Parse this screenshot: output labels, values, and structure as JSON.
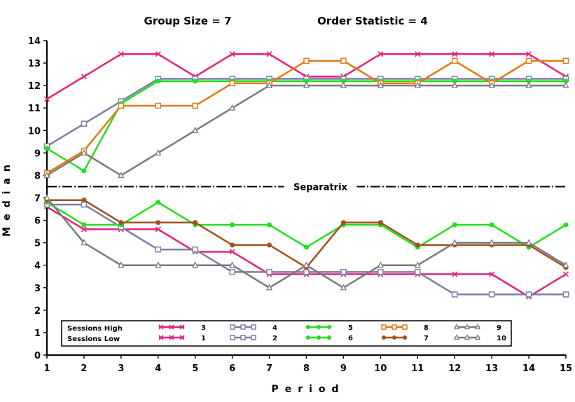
{
  "chart_data": {
    "type": "line",
    "title_left": "Group Size = 7",
    "title_right": "Order Statistic = 4",
    "xlabel": "Period",
    "ylabel": "Median",
    "x": [
      1,
      2,
      3,
      4,
      5,
      6,
      7,
      8,
      9,
      10,
      11,
      12,
      13,
      14,
      15
    ],
    "xlim": [
      1,
      15
    ],
    "ylim": [
      0,
      14
    ],
    "y_ticks": [
      0,
      1,
      2,
      3,
      4,
      5,
      6,
      7,
      8,
      9,
      10,
      11,
      12,
      13,
      14
    ],
    "y_tick_labels": [
      "0",
      "1",
      "2",
      "3",
      "4",
      "5",
      "6",
      "7",
      "8",
      "9",
      "10",
      "11",
      "12",
      "13",
      "14"
    ],
    "separatrix": {
      "label": "Separatrix",
      "y": 7.5
    },
    "legend": {
      "row_labels": [
        "Sessions High",
        "Sessions Low"
      ]
    },
    "series": [
      {
        "name": "3",
        "group": "Sessions High",
        "color": "#e8207a",
        "marker": "x",
        "values": [
          11.4,
          12.4,
          13.4,
          13.4,
          12.4,
          13.4,
          13.4,
          12.4,
          12.4,
          13.4,
          13.4,
          13.4,
          13.4,
          13.4,
          12.4
        ]
      },
      {
        "name": "4",
        "group": "Sessions High",
        "color": "#7b7fa8",
        "marker": "square",
        "values": [
          9.3,
          10.3,
          11.3,
          12.3,
          12.3,
          12.3,
          12.3,
          12.3,
          12.3,
          12.3,
          12.3,
          12.3,
          12.3,
          12.3,
          12.3
        ]
      },
      {
        "name": "5",
        "group": "Sessions High",
        "color": "#22e01c",
        "marker": "circle",
        "values": [
          9.2,
          8.2,
          11.2,
          12.2,
          12.2,
          12.2,
          12.2,
          12.2,
          12.2,
          12.2,
          12.2,
          12.2,
          12.2,
          12.2,
          12.2
        ]
      },
      {
        "name": "8",
        "group": "Sessions High",
        "color": "#e07a14",
        "marker": "square",
        "values": [
          8.1,
          9.1,
          11.1,
          11.1,
          11.1,
          12.1,
          12.1,
          13.1,
          13.1,
          12.1,
          12.1,
          13.1,
          12.1,
          13.1,
          13.1
        ]
      },
      {
        "name": "9",
        "group": "Sessions High",
        "color": "#7a7a7a",
        "marker": "triangle",
        "values": [
          8.0,
          9.0,
          8.0,
          9.0,
          10.0,
          11.0,
          12.0,
          12.0,
          12.0,
          12.0,
          12.0,
          12.0,
          12.0,
          12.0,
          12.0
        ]
      },
      {
        "name": "1",
        "group": "Sessions Low",
        "color": "#e8207a",
        "marker": "x",
        "values": [
          6.6,
          5.6,
          5.6,
          5.6,
          4.6,
          4.6,
          3.6,
          3.6,
          3.6,
          3.6,
          3.6,
          3.6,
          3.6,
          2.6,
          3.6
        ]
      },
      {
        "name": "2",
        "group": "Sessions Low",
        "color": "#7b7fa8",
        "marker": "square",
        "values": [
          6.7,
          6.7,
          5.7,
          4.7,
          4.7,
          3.7,
          3.7,
          3.7,
          3.7,
          3.7,
          3.7,
          2.7,
          2.7,
          2.7,
          2.7
        ]
      },
      {
        "name": "6",
        "group": "Sessions Low",
        "color": "#22e01c",
        "marker": "circle",
        "values": [
          6.8,
          5.8,
          5.8,
          6.8,
          5.8,
          5.8,
          5.8,
          4.8,
          5.8,
          5.8,
          4.8,
          5.8,
          5.8,
          4.8,
          5.8
        ]
      },
      {
        "name": "7",
        "group": "Sessions Low",
        "color": "#a0521e",
        "marker": "circle",
        "values": [
          6.9,
          6.9,
          5.9,
          5.9,
          5.9,
          4.9,
          4.9,
          3.9,
          5.9,
          5.9,
          4.9,
          4.9,
          4.9,
          4.9,
          3.9
        ]
      },
      {
        "name": "10",
        "group": "Sessions Low",
        "color": "#7a7a7a",
        "marker": "triangle",
        "values": [
          7.0,
          5.0,
          4.0,
          4.0,
          4.0,
          4.0,
          3.0,
          4.0,
          3.0,
          4.0,
          4.0,
          5.0,
          5.0,
          5.0,
          4.0
        ]
      }
    ]
  }
}
